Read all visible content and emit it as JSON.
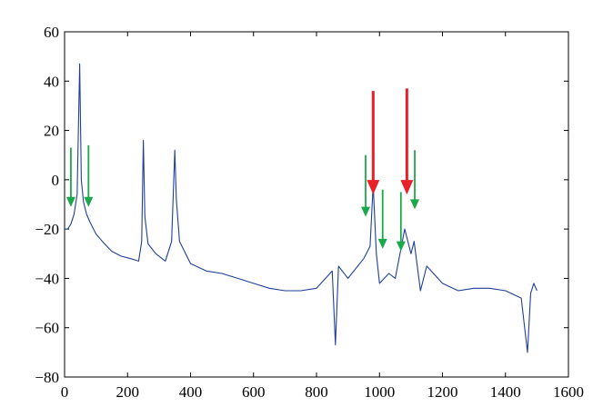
{
  "chart_data": {
    "type": "line",
    "title": "",
    "xlabel": "",
    "ylabel": "",
    "xlim": [
      0,
      1600
    ],
    "ylim": [
      -80,
      60
    ],
    "grid": false,
    "x_ticks": [
      0,
      200,
      400,
      600,
      800,
      1000,
      1200,
      1400,
      1600
    ],
    "x_tick_labels": [
      "0",
      "200",
      "400",
      "600",
      "800",
      "1000",
      "1200",
      "1400",
      "1600"
    ],
    "y_ticks": [
      60,
      40,
      20,
      0,
      -20,
      -40,
      -60,
      -80
    ],
    "y_tick_labels": [
      "60",
      "40",
      "20",
      "0",
      "−20",
      "−40",
      "−60",
      "−80"
    ],
    "series": [
      {
        "color": "#1f3f9a",
        "points": [
          [
            0,
            -20
          ],
          [
            10,
            -20
          ],
          [
            20,
            -18
          ],
          [
            30,
            -14
          ],
          [
            40,
            -6
          ],
          [
            48,
            47
          ],
          [
            53,
            0
          ],
          [
            60,
            -9
          ],
          [
            70,
            -14
          ],
          [
            80,
            -17
          ],
          [
            100,
            -22
          ],
          [
            120,
            -25
          ],
          [
            150,
            -29
          ],
          [
            180,
            -31
          ],
          [
            210,
            -32
          ],
          [
            235,
            -33
          ],
          [
            245,
            -25
          ],
          [
            250,
            16
          ],
          [
            255,
            -15
          ],
          [
            265,
            -26
          ],
          [
            290,
            -30
          ],
          [
            320,
            -33
          ],
          [
            340,
            -25
          ],
          [
            350,
            12
          ],
          [
            355,
            -8
          ],
          [
            365,
            -25
          ],
          [
            400,
            -34
          ],
          [
            450,
            -37
          ],
          [
            500,
            -38
          ],
          [
            550,
            -40
          ],
          [
            600,
            -42
          ],
          [
            650,
            -44
          ],
          [
            700,
            -45
          ],
          [
            750,
            -45
          ],
          [
            800,
            -44
          ],
          [
            850,
            -37
          ],
          [
            860,
            -67
          ],
          [
            870,
            -35
          ],
          [
            900,
            -40
          ],
          [
            950,
            -32
          ],
          [
            970,
            -27
          ],
          [
            980,
            -2
          ],
          [
            990,
            -30
          ],
          [
            1000,
            -42
          ],
          [
            1030,
            -38
          ],
          [
            1050,
            -40
          ],
          [
            1080,
            -20
          ],
          [
            1100,
            -30
          ],
          [
            1110,
            -25
          ],
          [
            1130,
            -45
          ],
          [
            1150,
            -35
          ],
          [
            1200,
            -42
          ],
          [
            1250,
            -45
          ],
          [
            1300,
            -44
          ],
          [
            1350,
            -44
          ],
          [
            1400,
            -45
          ],
          [
            1450,
            -48
          ],
          [
            1470,
            -70
          ],
          [
            1480,
            -46
          ],
          [
            1490,
            -42
          ],
          [
            1500,
            -45
          ]
        ]
      }
    ],
    "annotations": [
      {
        "kind": "arrow",
        "color": "#e8202a",
        "x": 980,
        "y_from": 36,
        "y_to": -6,
        "weight": "thick"
      },
      {
        "kind": "arrow",
        "color": "#e8202a",
        "x": 1087,
        "y_from": 37,
        "y_to": -6,
        "weight": "thick"
      },
      {
        "kind": "arrow",
        "color": "#1aa84a",
        "x": 20,
        "y_from": 13,
        "y_to": -11,
        "weight": "thin"
      },
      {
        "kind": "arrow",
        "color": "#1aa84a",
        "x": 76,
        "y_from": 14,
        "y_to": -11,
        "weight": "thin"
      },
      {
        "kind": "arrow",
        "color": "#1aa84a",
        "x": 956,
        "y_from": 10,
        "y_to": -15,
        "weight": "thin"
      },
      {
        "kind": "arrow",
        "color": "#1aa84a",
        "x": 1010,
        "y_from": -4,
        "y_to": -28,
        "weight": "thin"
      },
      {
        "kind": "arrow",
        "color": "#1aa84a",
        "x": 1068,
        "y_from": -5,
        "y_to": -29,
        "weight": "thin"
      },
      {
        "kind": "arrow",
        "color": "#1aa84a",
        "x": 1112,
        "y_from": 12,
        "y_to": -12,
        "weight": "thin"
      }
    ]
  }
}
